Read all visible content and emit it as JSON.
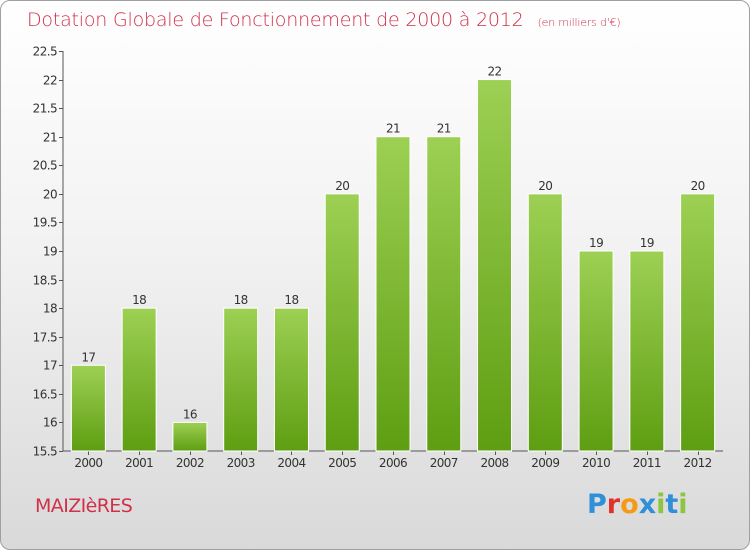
{
  "header": {
    "title": "Dotation Globale de Fonctionnement de 2000 à 2012",
    "unit": "(en milliers d'€)"
  },
  "footer": {
    "commune": "MAIZIèRES",
    "brand": "Proxiti"
  },
  "colors": {
    "title": "#d0304a",
    "bar_top": "#9dd054",
    "bar_bottom": "#5e9e12",
    "brand_letters": [
      "#2f8fd8",
      "#e0322c",
      "#f59a16",
      "#2f8fd8",
      "#8cc63f",
      "#2f8fd8",
      "#8cc63f"
    ]
  },
  "chart_data": {
    "type": "bar",
    "title": "Dotation Globale de Fonctionnement de 2000 à 2012",
    "subtitle": "(en milliers d'€)",
    "xlabel": "",
    "ylabel": "",
    "categories": [
      "2000",
      "2001",
      "2002",
      "2003",
      "2004",
      "2005",
      "2006",
      "2007",
      "2008",
      "2009",
      "2010",
      "2011",
      "2012"
    ],
    "values": [
      17,
      18,
      16,
      18,
      18,
      20,
      21,
      21,
      22,
      20,
      19,
      19,
      20
    ],
    "data_labels": [
      "17",
      "18",
      "16",
      "18",
      "18",
      "20",
      "21",
      "21",
      "22",
      "20",
      "19",
      "19",
      "20"
    ],
    "ylim": [
      15.5,
      22.5
    ],
    "yticks": [
      15.5,
      16,
      16.5,
      17,
      17.5,
      18,
      18.5,
      19,
      19.5,
      20,
      20.5,
      21,
      21.5,
      22,
      22.5
    ],
    "ytick_labels": [
      "15.5",
      "16",
      "16.5",
      "17",
      "17.5",
      "18",
      "18.5",
      "19",
      "19.5",
      "20",
      "20.5",
      "21",
      "21.5",
      "22",
      "22.5"
    ],
    "grid": false,
    "legend": "none"
  }
}
